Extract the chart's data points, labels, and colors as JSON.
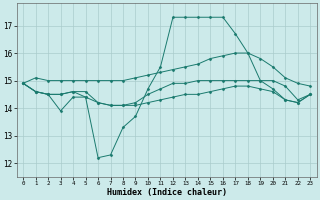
{
  "xlabel": "Humidex (Indice chaleur)",
  "bg_color": "#cceaea",
  "grid_color": "#aacccc",
  "line_color": "#1a7a6e",
  "x_ticks": [
    0,
    1,
    2,
    3,
    4,
    5,
    6,
    7,
    8,
    9,
    10,
    11,
    12,
    13,
    14,
    15,
    16,
    17,
    18,
    19,
    20,
    21,
    22,
    23
  ],
  "y_ticks": [
    12,
    13,
    14,
    15,
    16,
    17
  ],
  "xlim": [
    -0.5,
    23.5
  ],
  "ylim": [
    11.5,
    17.8
  ],
  "series": [
    {
      "x": [
        0,
        1,
        2,
        3,
        4,
        5,
        6,
        7,
        8,
        9,
        10,
        11,
        12,
        13,
        14,
        15,
        16,
        17,
        18,
        19,
        20,
        21,
        22,
        23
      ],
      "y": [
        14.9,
        15.1,
        15.0,
        15.0,
        15.0,
        15.0,
        15.0,
        15.0,
        15.0,
        15.1,
        15.2,
        15.3,
        15.4,
        15.5,
        15.6,
        15.8,
        15.9,
        16.0,
        16.0,
        15.8,
        15.5,
        15.1,
        14.9,
        14.8
      ]
    },
    {
      "x": [
        0,
        1,
        2,
        3,
        4,
        5,
        6,
        7,
        8,
        9,
        10,
        11,
        12,
        13,
        14,
        15,
        16,
        17,
        18,
        19,
        20,
        21,
        22,
        23
      ],
      "y": [
        14.9,
        14.6,
        14.5,
        14.5,
        14.6,
        14.4,
        12.2,
        12.3,
        13.3,
        13.7,
        14.7,
        15.5,
        17.3,
        17.3,
        17.3,
        17.3,
        17.3,
        16.7,
        16.0,
        15.0,
        14.7,
        14.3,
        14.2,
        14.5
      ]
    },
    {
      "x": [
        0,
        1,
        2,
        3,
        4,
        5,
        6,
        7,
        8,
        9,
        10,
        11,
        12,
        13,
        14,
        15,
        16,
        17,
        18,
        19,
        20,
        21,
        22,
        23
      ],
      "y": [
        14.9,
        14.6,
        14.5,
        14.5,
        14.6,
        14.6,
        14.2,
        14.1,
        14.1,
        14.1,
        14.2,
        14.3,
        14.4,
        14.5,
        14.5,
        14.6,
        14.7,
        14.8,
        14.8,
        14.7,
        14.6,
        14.3,
        14.2,
        14.5
      ]
    },
    {
      "x": [
        0,
        1,
        2,
        3,
        4,
        5,
        6,
        7,
        8,
        9,
        10,
        11,
        12,
        13,
        14,
        15,
        16,
        17,
        18,
        19,
        20,
        21,
        22,
        23
      ],
      "y": [
        14.9,
        14.6,
        14.5,
        13.9,
        14.4,
        14.4,
        14.2,
        14.1,
        14.1,
        14.2,
        14.5,
        14.7,
        14.9,
        14.9,
        15.0,
        15.0,
        15.0,
        15.0,
        15.0,
        15.0,
        15.0,
        14.8,
        14.3,
        14.5
      ]
    }
  ]
}
